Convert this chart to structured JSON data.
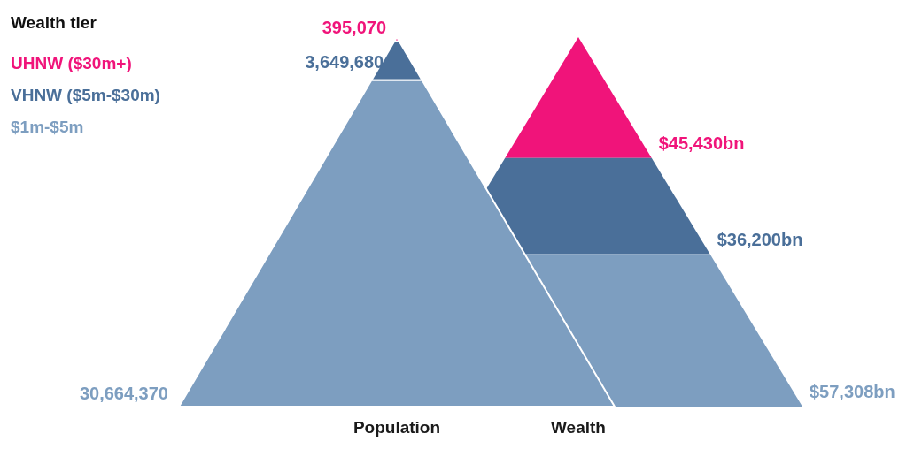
{
  "chart_data": {
    "type": "other",
    "legend_title": "Wealth tier",
    "categories": [
      "Population",
      "Wealth"
    ],
    "series": [
      {
        "name": "UHNW ($30m+)",
        "color": "#f0147a",
        "values": [
          395070,
          45430
        ],
        "value_labels": [
          "395,070",
          "$45,430bn"
        ]
      },
      {
        "name": "VHNW ($5m-$30m)",
        "color": "#4a6f99",
        "values": [
          3649680,
          36200
        ],
        "value_labels": [
          "3,649,680",
          "$36,200bn"
        ]
      },
      {
        "name": "$1m-$5m",
        "color": "#7d9ec0",
        "values": [
          30664370,
          57308
        ],
        "value_labels": [
          "30,664,370",
          "$57,308bn"
        ]
      }
    ]
  }
}
